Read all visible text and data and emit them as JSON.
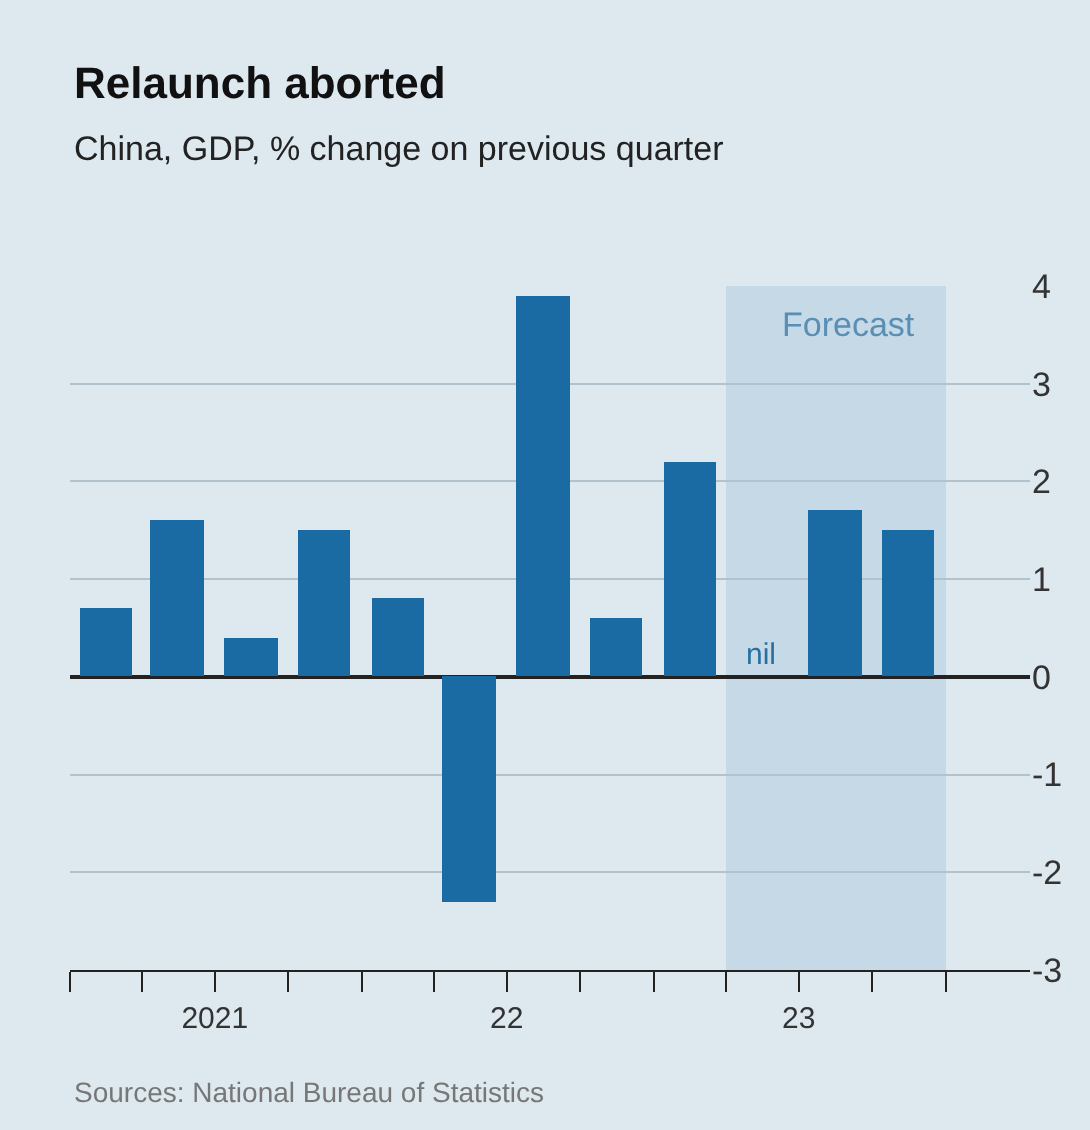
{
  "chart_data": {
    "type": "bar",
    "title": "Relaunch aborted",
    "subtitle": "China, GDP, % change on previous quarter",
    "x": [
      "2021-02-15",
      "2021-05-15",
      "2021-08-15",
      "2021-11-15",
      "2022-02-15",
      "2022-05-15",
      "2022-08-15",
      "2022-11-15",
      "2023-02-15",
      "2023-05-15",
      "2023-08-15",
      "2023-11-15"
    ],
    "values": [
      0.7,
      1.6,
      0.4,
      1.5,
      0.8,
      -2.3,
      3.9,
      0.6,
      2.2,
      0,
      1.7,
      1.5
    ],
    "color": "#1a6aa3",
    "xlim": [
      "2021-01-01",
      "2024-04-15"
    ],
    "xticks": [
      {
        "value": "2021-01-01",
        "label": null
      },
      {
        "value": "2021-04-01",
        "label": null
      },
      {
        "value": "2021-07-01",
        "label": "2021"
      },
      {
        "value": "2021-10-01",
        "label": null
      },
      {
        "value": "2022-01-01",
        "label": null
      },
      {
        "value": "2022-04-01",
        "label": null
      },
      {
        "value": "2022-07-01",
        "label": "22"
      },
      {
        "value": "2022-10-01",
        "label": null
      },
      {
        "value": "2023-01-01",
        "label": null
      },
      {
        "value": "2023-04-01",
        "label": null
      },
      {
        "value": "2023-07-01",
        "label": "23"
      },
      {
        "value": "2023-10-01",
        "label": null
      },
      {
        "value": "2024-01-01",
        "label": null
      }
    ],
    "ylim": [
      -3,
      4
    ],
    "yticks": [
      -3,
      -2,
      -1,
      0,
      1,
      2,
      3,
      4
    ],
    "grid": "y",
    "bands": [
      {
        "axis": "x",
        "from": "2023-04-01",
        "to": "2024-01-01",
        "label": "Forecast",
        "color": "#c5d9e7"
      }
    ],
    "annotations": [
      {
        "text": "nil",
        "x": "2023-05-15",
        "y": 0
      },
      "Sources: National Bureau of Statistics"
    ]
  }
}
